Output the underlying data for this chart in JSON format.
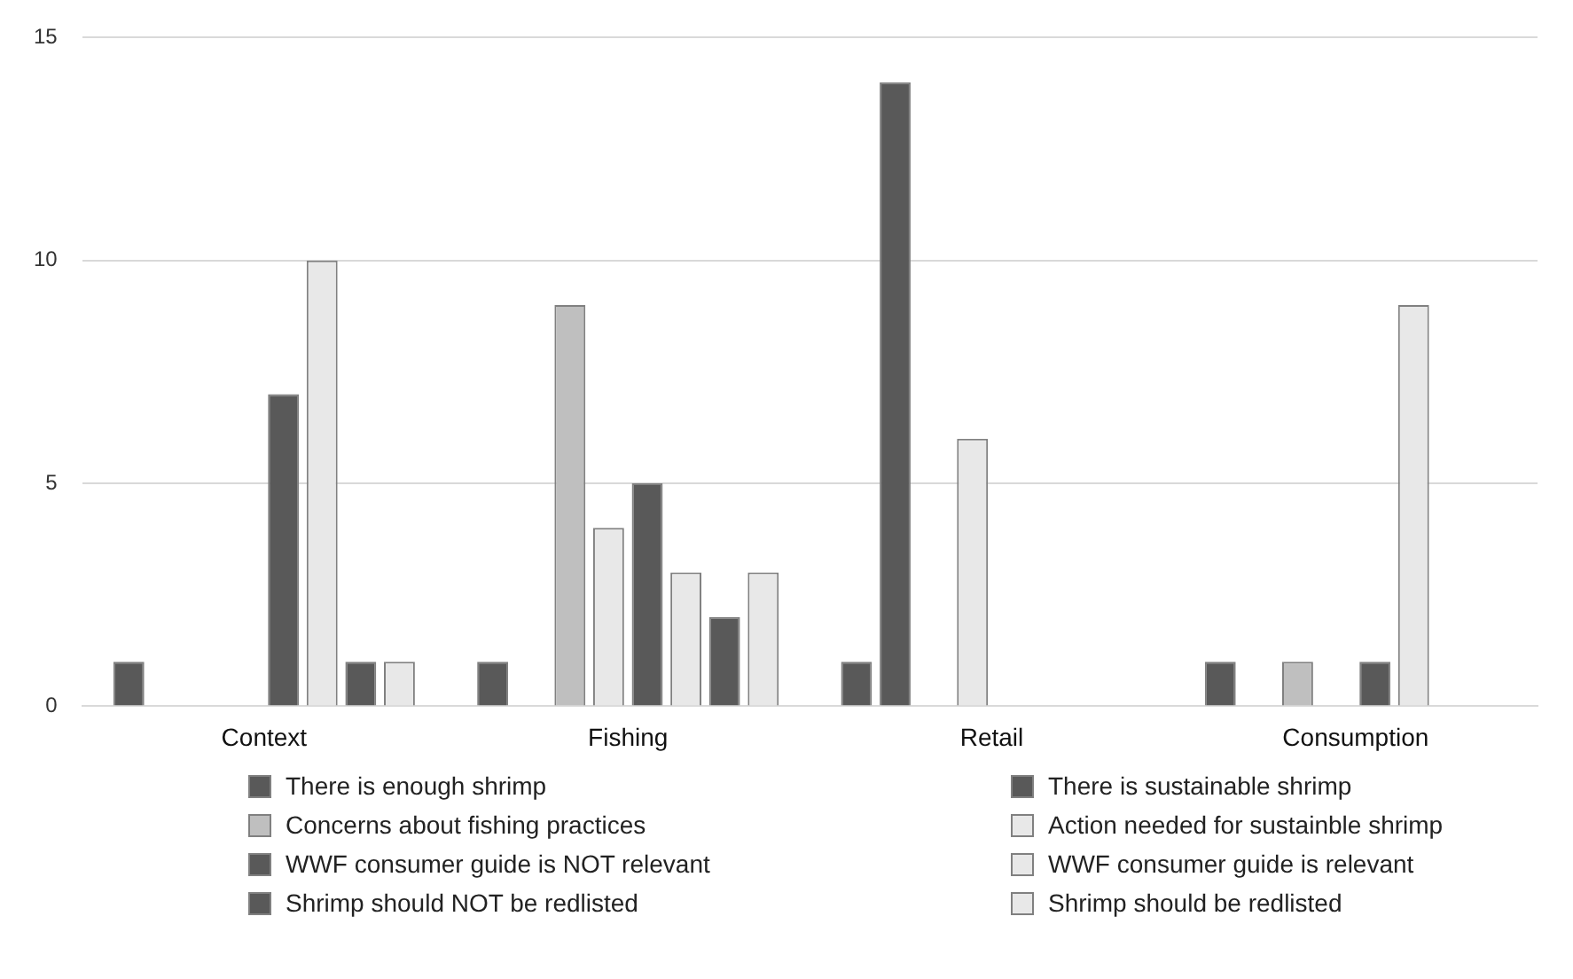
{
  "chart_data": {
    "type": "bar",
    "categories": [
      "Context",
      "Fishing",
      "Retail",
      "Consumption"
    ],
    "series": [
      {
        "name": "There is enough shrimp",
        "color": "#595959",
        "values": [
          1,
          1,
          1,
          1
        ]
      },
      {
        "name": "There is sustainable shrimp",
        "color": "#595959",
        "values": [
          0,
          0,
          14,
          0
        ]
      },
      {
        "name": "Concerns about fishing practices",
        "color": "#bfbfbf",
        "values": [
          0,
          9,
          0,
          1
        ]
      },
      {
        "name": "Action needed for sustainble shrimp",
        "color": "#e8e8e8",
        "values": [
          0,
          4,
          6,
          0
        ]
      },
      {
        "name": "WWF consumer guide is NOT relevant",
        "color": "#595959",
        "values": [
          7,
          5,
          0,
          1
        ]
      },
      {
        "name": "WWF consumer guide is relevant",
        "color": "#e8e8e8",
        "values": [
          10,
          3,
          0,
          9
        ]
      },
      {
        "name": "Shrimp should NOT be redlisted",
        "color": "#595959",
        "values": [
          1,
          2,
          0,
          0
        ]
      },
      {
        "name": "Shrimp should be redlisted",
        "color": "#e8e8e8",
        "values": [
          1,
          3,
          0,
          0
        ]
      }
    ],
    "ylim": [
      0,
      15
    ],
    "yticks": [
      0,
      5,
      10,
      15
    ],
    "grid": "y",
    "legend": "bottom"
  }
}
